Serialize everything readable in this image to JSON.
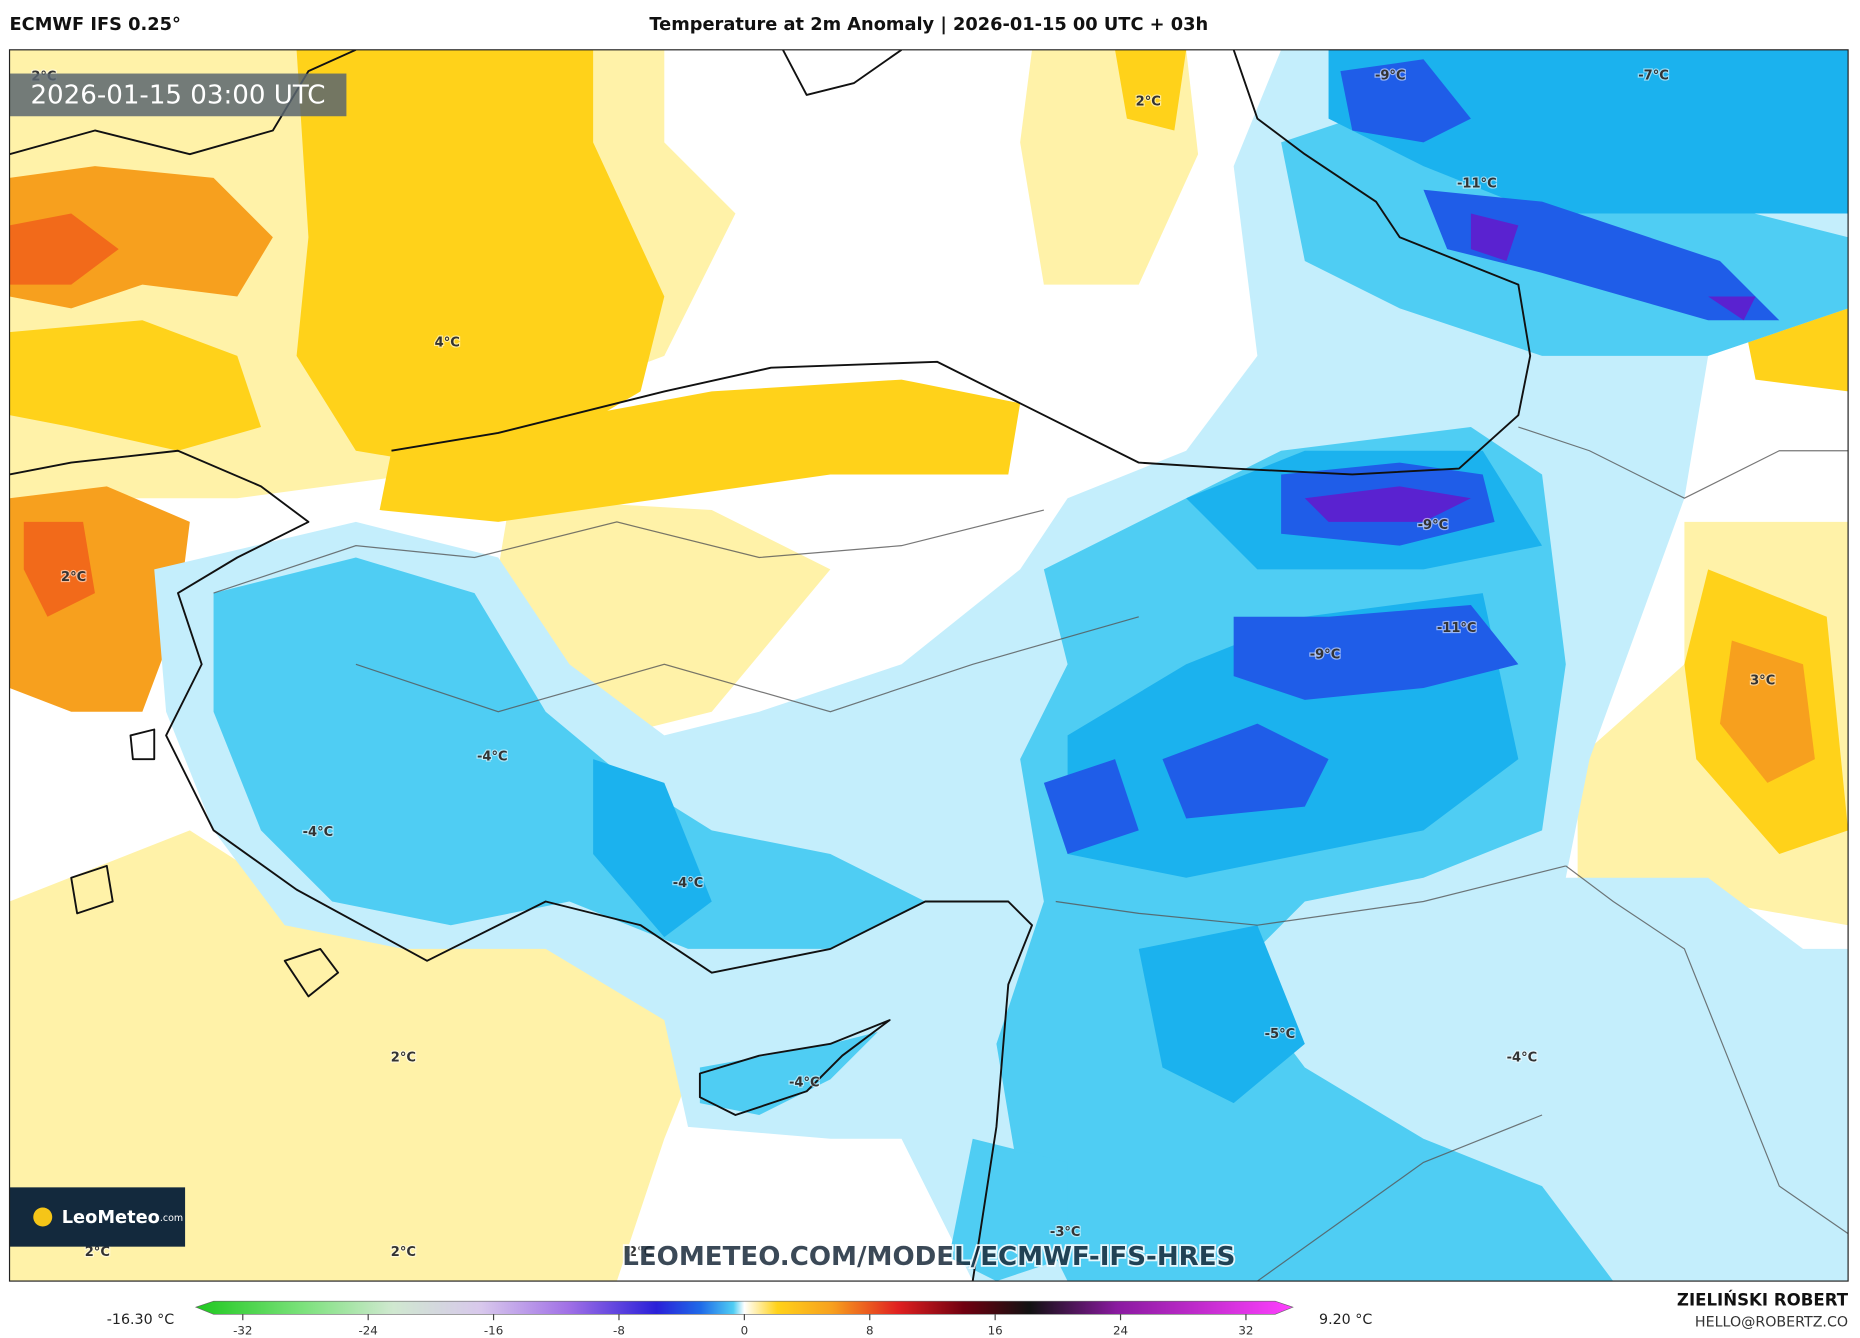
{
  "header": {
    "model": "ECMWF IFS 0.25°",
    "title": "Temperature at 2m Anomaly | 2026-01-15 00 UTC + 03h"
  },
  "map": {
    "timestamp": "2026-01-15 03:00 UTC",
    "labels": [
      "2°C",
      "4°C",
      "2°C",
      "-9°C",
      "-7°C",
      "-11°C",
      "-9°C",
      "-11°C",
      "-9°C",
      "3°C",
      "2°C",
      "-4°C",
      "-4°C",
      "-4°C",
      "2°C",
      "-5°C",
      "-4°C",
      "-4°C",
      "-3°C",
      "2°C",
      "2°C",
      "2°C"
    ],
    "watermark": "LEOMETEO.COM/MODEL/ECMWF-IFS-HRES",
    "logo": {
      "name": "LeoMeteo",
      "suffix": ".com"
    }
  },
  "colorbar": {
    "min_label": "-16.30 °C",
    "max_label": "9.20 °C",
    "range": [
      -35,
      35
    ],
    "ticks": [
      -32,
      -24,
      -16,
      -8,
      0,
      8,
      16,
      24,
      32
    ]
  },
  "credit": {
    "author": "ZIELIŃSKI ROBERT",
    "email": "HELLO@ROBERTZ.CO"
  }
}
